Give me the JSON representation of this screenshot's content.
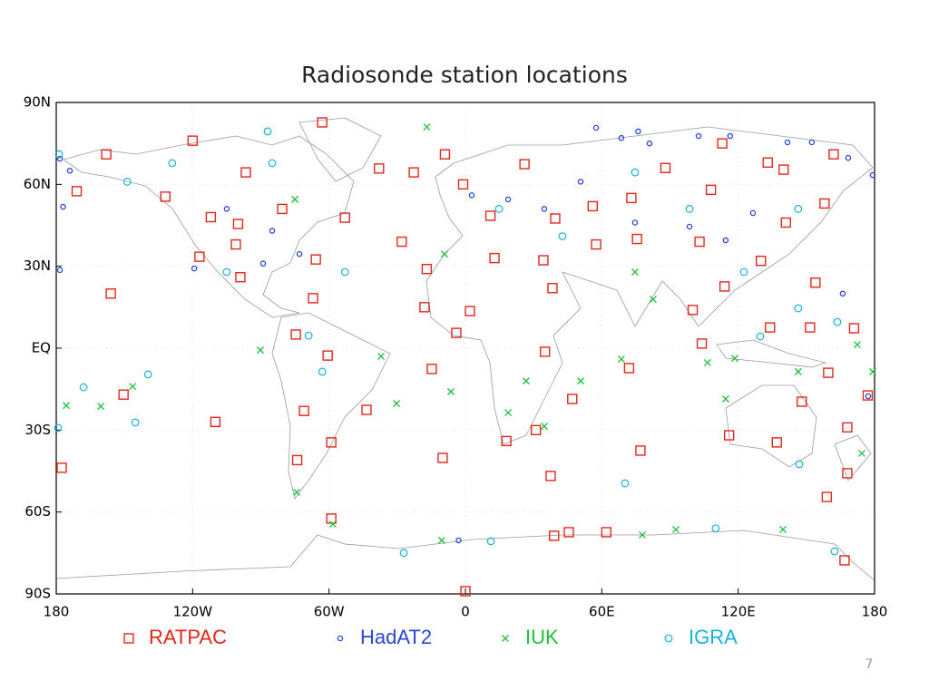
{
  "chart_data": {
    "type": "scatter",
    "title": "Radiosonde station locations",
    "xlim": [
      -180,
      180
    ],
    "ylim": [
      -90,
      90
    ],
    "xticks": [
      {
        "value": -180,
        "label": "180"
      },
      {
        "value": -120,
        "label": "120W"
      },
      {
        "value": -60,
        "label": "60W"
      },
      0,
      {
        "value": 60,
        "label": "60E"
      },
      {
        "value": 120,
        "label": "120E"
      },
      180
    ],
    "yticks": [
      {
        "value": -90,
        "label": "90S"
      },
      {
        "value": -60,
        "label": "60S"
      },
      {
        "value": -30,
        "label": "30S"
      },
      {
        "value": 0,
        "label": "EQ"
      },
      {
        "value": 30,
        "label": "30N"
      },
      {
        "value": 60,
        "label": "60N"
      },
      {
        "value": 90,
        "label": "90N"
      }
    ],
    "grid": true,
    "legend": "bottom",
    "series": [
      {
        "name": "RATPAC",
        "color": "#e3261b",
        "marker": "square",
        "x": [
          -63,
          -120,
          -158,
          -171,
          -96.6,
          -38,
          -22.7,
          -9,
          26,
          -1,
          11,
          39.5,
          56,
          57.5,
          75.5,
          73,
          88,
          108,
          113,
          133,
          162,
          158,
          141,
          103,
          114,
          130,
          134,
          151.6,
          154,
          171,
          104,
          100,
          72,
          77,
          35,
          47,
          31,
          18,
          37.5,
          45.5,
          62,
          39,
          148,
          116,
          137,
          159.6,
          168,
          168,
          177,
          159,
          166.8,
          140,
          0,
          -59,
          -59,
          -74,
          -71,
          -43.5,
          -60.6,
          -74.6,
          -67,
          -65.8,
          -53,
          -80.6,
          -100,
          -101,
          -99,
          -117,
          -112,
          -132,
          -156,
          -150.4,
          -110,
          -177.6,
          -28,
          -17,
          -18,
          2,
          -4,
          -14.8,
          12.8,
          34.3,
          38.3,
          -10
        ],
        "y": [
          82.7,
          76,
          71,
          57.5,
          64.4,
          65.8,
          64.4,
          71,
          67.4,
          60,
          48.5,
          47.5,
          52,
          38,
          40,
          55,
          66,
          58,
          75,
          68,
          71,
          53,
          46,
          39,
          22.6,
          32,
          7.6,
          7.6,
          24,
          7.3,
          1.7,
          14,
          -7.3,
          -37.5,
          -1.3,
          -18.6,
          -30,
          -34,
          -46.8,
          -67.4,
          -67.4,
          -68.7,
          -19.6,
          -31.9,
          -34.5,
          -9,
          -29,
          -45.8,
          -17.3,
          -54.5,
          -77.7,
          65.4,
          -89,
          -62.4,
          -34.5,
          -41,
          -23,
          -22.6,
          -2.7,
          5,
          18.3,
          32.5,
          47.8,
          51,
          45.5,
          38,
          26,
          33.5,
          48,
          55.5,
          20,
          -17,
          -27,
          -43.8,
          39,
          29,
          15,
          13.6,
          5.6,
          -7.6,
          33,
          32.2,
          22,
          -40.2
        ]
      },
      {
        "name": "HadAT2",
        "color": "#2b45d4",
        "marker": "circle",
        "x": [
          -178.4,
          -174,
          -177,
          -178.4,
          -119.3,
          57.5,
          68.6,
          76,
          81,
          102.6,
          116.5,
          141.7,
          152.4,
          168.4,
          179.2,
          166,
          177.2,
          -3,
          2.8,
          18.8,
          34.7,
          50.7,
          74.6,
          98.6,
          114.5,
          126.5,
          -85,
          -105,
          -73,
          -89
        ],
        "y": [
          69.4,
          65,
          51.8,
          28.6,
          29.2,
          80.7,
          77,
          79.4,
          75,
          77.7,
          77.7,
          75.4,
          75.4,
          69.7,
          63.4,
          20,
          -17.6,
          -70.4,
          56,
          54.5,
          51,
          61,
          46,
          44.5,
          39.5,
          49.5,
          43,
          51,
          34.5,
          31
        ]
      },
      {
        "name": "IUK",
        "color": "#1fbf3a",
        "marker": "cross",
        "x": [
          -90.2,
          -146.4,
          -160.4,
          -175.6,
          18.8,
          26.7,
          50.7,
          74.6,
          82.6,
          106.5,
          118.5,
          114.5,
          146.4,
          172.4,
          174.4,
          179.2,
          -17,
          -74.2,
          -58.3,
          -10.4,
          77.8,
          92.6,
          139.7,
          -9.2,
          34.7,
          -75,
          -37.1,
          -30.3,
          -6.4,
          68.6
        ],
        "y": [
          -0.7,
          -14,
          -21.3,
          -21,
          -23.6,
          -12,
          -12,
          27.9,
          17.9,
          -5.3,
          -3.7,
          -18.6,
          -8.6,
          1.3,
          -38.5,
          -8.6,
          81,
          -52.8,
          -64.4,
          -70.4,
          -68.4,
          -66.4,
          -66.4,
          34.5,
          -28.6,
          54.5,
          -3,
          -20.3,
          -15.9,
          -4
        ]
      },
      {
        "name": "IGRA",
        "color": "#19b2d6",
        "marker": "ring",
        "x": [
          -178.8,
          -179.2,
          -168,
          -145.2,
          -139.6,
          -27.1,
          11.2,
          110.1,
          70.2,
          162.4,
          146.9,
          163.6,
          129.7,
          146.4,
          -69,
          -63,
          -85,
          -129,
          14.8,
          42.7,
          74.6,
          98.6,
          122.5,
          146.4,
          -105,
          -53,
          -87,
          -148.8
        ],
        "y": [
          71,
          -29.2,
          -14.3,
          -27.2,
          -9.6,
          -75,
          -70.7,
          -66,
          -49.5,
          -74.4,
          -42.5,
          9.6,
          4.3,
          14.6,
          4.6,
          -8.6,
          67.8,
          67.8,
          51,
          41,
          64.4,
          51,
          27.9,
          51,
          27.9,
          27.9,
          79.4,
          61
        ]
      }
    ],
    "page_number": "7"
  }
}
